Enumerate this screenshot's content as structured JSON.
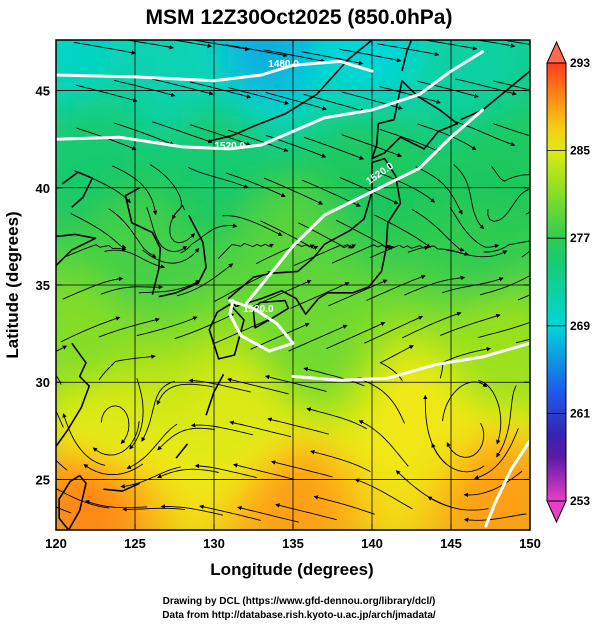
{
  "title": "MSM 12Z30Oct2025 (850.0hPa)",
  "xaxis": {
    "label": "Longitude (degrees)",
    "range": [
      120,
      150
    ],
    "ticks": [
      "120",
      "125",
      "130",
      "135",
      "140",
      "145",
      "150"
    ]
  },
  "yaxis": {
    "label": "Latitude  (degrees)",
    "range": [
      22.4,
      47.6
    ],
    "ticks": [
      "25",
      "30",
      "35",
      "40",
      "45"
    ]
  },
  "colorbar": {
    "range": [
      253,
      293
    ],
    "ticks": [
      "293",
      "285",
      "277",
      "269",
      "261",
      "253"
    ]
  },
  "contour_labels": [
    "1480.0",
    "1520.0",
    "1520.0",
    "1520.0"
  ],
  "credits": {
    "line1": "Drawing by DCL (https://www.gfd-dennou.org/library/dcl/)",
    "line2": "Data from http://database.rish.kyoto-u.ac.jp/arch/jmadata/"
  },
  "chart_data": {
    "type": "heatmap",
    "title": "MSM 12Z30Oct2025 (850.0hPa)",
    "xlabel": "Longitude (degrees)",
    "ylabel": "Latitude  (degrees)",
    "xlim": [
      120,
      150
    ],
    "ylim": [
      22.4,
      47.6
    ],
    "clim": [
      253,
      293
    ],
    "grid": true,
    "field_samples": [
      {
        "lon": 121,
        "lat": 47,
        "value": 270
      },
      {
        "lon": 128,
        "lat": 46,
        "value": 271
      },
      {
        "lon": 133,
        "lat": 47,
        "value": 267
      },
      {
        "lon": 140,
        "lat": 47,
        "value": 269
      },
      {
        "lon": 146,
        "lat": 46,
        "value": 272
      },
      {
        "lon": 122,
        "lat": 42,
        "value": 275
      },
      {
        "lon": 130,
        "lat": 42,
        "value": 275
      },
      {
        "lon": 140,
        "lat": 41,
        "value": 276
      },
      {
        "lon": 148,
        "lat": 41,
        "value": 276
      },
      {
        "lon": 125,
        "lat": 37,
        "value": 278
      },
      {
        "lon": 135,
        "lat": 37,
        "value": 279
      },
      {
        "lon": 147,
        "lat": 37,
        "value": 277
      },
      {
        "lon": 122,
        "lat": 32,
        "value": 281
      },
      {
        "lon": 136,
        "lat": 32,
        "value": 280
      },
      {
        "lon": 148,
        "lat": 32,
        "value": 282
      },
      {
        "lon": 123,
        "lat": 28,
        "value": 285
      },
      {
        "lon": 132,
        "lat": 28,
        "value": 285
      },
      {
        "lon": 143,
        "lat": 28,
        "value": 286
      },
      {
        "lon": 122,
        "lat": 24,
        "value": 290
      },
      {
        "lon": 135,
        "lat": 24,
        "value": 289
      },
      {
        "lon": 148,
        "lat": 24,
        "value": 289
      }
    ],
    "contours": [
      {
        "label": "1480.0",
        "points": [
          [
            120,
            45.8
          ],
          [
            125,
            45.7
          ],
          [
            130,
            45.5
          ],
          [
            133,
            45.8
          ],
          [
            135,
            46.3
          ],
          [
            138,
            46.5
          ],
          [
            140,
            46.0
          ]
        ]
      },
      {
        "label": "1520.0",
        "points": [
          [
            120,
            42.5
          ],
          [
            124,
            42.6
          ],
          [
            128,
            42.1
          ],
          [
            131,
            42.0
          ],
          [
            133,
            42.2
          ],
          [
            135,
            42.9
          ],
          [
            137,
            43.6
          ],
          [
            140,
            44.0
          ],
          [
            143,
            44.8
          ],
          [
            145,
            46.0
          ],
          [
            147,
            47.0
          ]
        ]
      },
      {
        "label": "1520.0",
        "points": [
          [
            131,
            34.2
          ],
          [
            132.5,
            33.8
          ],
          [
            134,
            33.0
          ],
          [
            135,
            32.0
          ],
          [
            133.5,
            31.6
          ],
          [
            131.7,
            32.4
          ],
          [
            131,
            33.5
          ],
          [
            131.2,
            34.2
          ]
        ]
      },
      {
        "label": "1520.0",
        "points": [
          [
            132,
            34.0
          ],
          [
            135,
            37.0
          ],
          [
            137,
            38.6
          ],
          [
            140,
            39.8
          ],
          [
            143,
            41.0
          ],
          [
            145,
            42.6
          ],
          [
            147,
            44.0
          ]
        ]
      },
      {
        "label": "1520.0",
        "points": [
          [
            135,
            30.3
          ],
          [
            138,
            30.1
          ],
          [
            141,
            30.2
          ],
          [
            144,
            30.9
          ],
          [
            147,
            31.3
          ],
          [
            150,
            32.0
          ]
        ]
      },
      {
        "label": "",
        "points": [
          [
            150,
            27.0
          ],
          [
            148.8,
            25.5
          ],
          [
            147.8,
            23.8
          ],
          [
            147.2,
            22.6
          ]
        ]
      }
    ]
  }
}
